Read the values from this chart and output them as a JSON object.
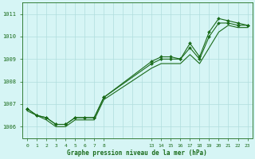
{
  "xlabel": "Graphe pression niveau de la mer (hPa)",
  "background_color": "#d6f5f5",
  "grid_color": "#b0dede",
  "line_color": "#1a6b1a",
  "ylim": [
    1005.5,
    1011.5
  ],
  "yticks": [
    1006,
    1007,
    1008,
    1009,
    1010,
    1011
  ],
  "xtick_positions": [
    0,
    1,
    2,
    3,
    4,
    5,
    6,
    7,
    8,
    13,
    14,
    15,
    16,
    17,
    18,
    19,
    20,
    21,
    22,
    23
  ],
  "xtick_labels": [
    "0",
    "1",
    "2",
    "3",
    "4",
    "5",
    "6",
    "7",
    "8",
    "13",
    "14",
    "15",
    "16",
    "17",
    "18",
    "19",
    "20",
    "21",
    "22",
    "23"
  ],
  "xlim": [
    -0.5,
    23.5
  ],
  "series1_x": [
    0,
    1,
    2,
    3,
    4,
    5,
    6,
    7,
    8,
    13,
    14,
    15,
    16,
    17,
    18,
    19,
    20,
    21,
    22,
    23
  ],
  "series1_y": [
    1006.8,
    1006.5,
    1006.4,
    1006.1,
    1006.1,
    1006.4,
    1006.4,
    1006.4,
    1007.3,
    1008.9,
    1009.1,
    1009.1,
    1009.0,
    1009.7,
    1009.1,
    1010.2,
    1010.8,
    1010.7,
    1010.6,
    1010.5
  ],
  "series2_x": [
    0,
    1,
    2,
    3,
    4,
    5,
    6,
    7,
    8,
    13,
    14,
    15,
    16,
    17,
    18,
    19,
    20,
    21,
    22,
    23
  ],
  "series2_y": [
    1006.8,
    1006.5,
    1006.4,
    1006.1,
    1006.1,
    1006.4,
    1006.4,
    1006.4,
    1007.3,
    1008.8,
    1009.0,
    1009.0,
    1009.0,
    1009.5,
    1009.0,
    1010.0,
    1010.6,
    1010.6,
    1010.5,
    1010.5
  ],
  "series3_x": [
    0,
    1,
    2,
    3,
    4,
    5,
    6,
    7,
    8,
    13,
    14,
    15,
    16,
    17,
    18,
    19,
    20,
    21,
    22,
    23
  ],
  "series3_y": [
    1006.7,
    1006.5,
    1006.3,
    1006.0,
    1006.0,
    1006.3,
    1006.3,
    1006.3,
    1007.2,
    1008.6,
    1008.8,
    1008.8,
    1008.8,
    1009.2,
    1008.8,
    1009.5,
    1010.2,
    1010.5,
    1010.4,
    1010.4
  ]
}
